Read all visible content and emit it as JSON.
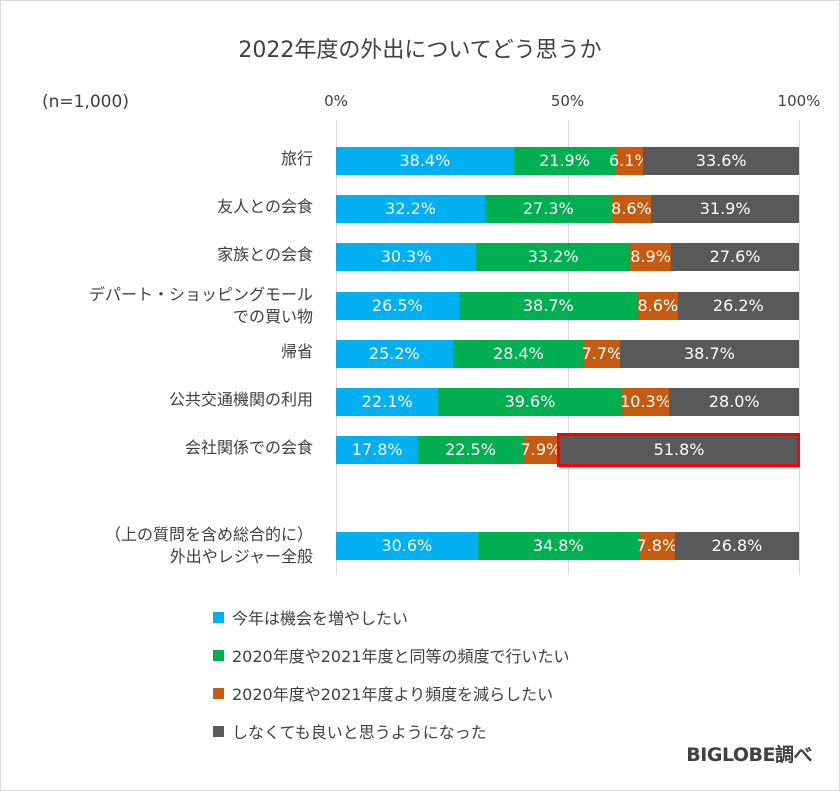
{
  "chart_data": {
    "type": "bar",
    "orientation": "horizontal",
    "stacked": "percent",
    "title": "2022年度の外出についてどう思うか",
    "sample_note": "(n=1,000)",
    "xlim": [
      0,
      100
    ],
    "x_ticks": [
      "0%",
      "50%",
      "100%"
    ],
    "grid": true,
    "legend_position": "bottom",
    "categories": [
      [
        "旅行"
      ],
      [
        "友人との会食"
      ],
      [
        "家族との会食"
      ],
      [
        "デパート・ショッピングモール",
        "での買い物"
      ],
      [
        "帰省"
      ],
      [
        "公共交通機関の利用"
      ],
      [
        "会社関係での会食"
      ],
      [
        "（上の質問を含め総合的に）",
        "外出やレジャー全般"
      ]
    ],
    "series": [
      {
        "name": "今年は機会を増やしたい",
        "color": "#00b0f0",
        "values": [
          38.4,
          32.2,
          30.3,
          26.5,
          25.2,
          22.1,
          17.8,
          30.6
        ],
        "labels": [
          "38.4%",
          "32.2%",
          "30.3%",
          "26.5%",
          "25.2%",
          "22.1%",
          "17.8%",
          "30.6%"
        ]
      },
      {
        "name": "2020年度や2021年度と同等の頻度で行いたい",
        "color": "#00b050",
        "values": [
          21.9,
          27.3,
          33.2,
          38.7,
          28.4,
          39.6,
          22.5,
          34.8
        ],
        "labels": [
          "21.9%",
          "27.3%",
          "33.2%",
          "38.7%",
          "28.4%",
          "39.6%",
          "22.5%",
          "34.8%"
        ]
      },
      {
        "name": "2020年度や2021年度より頻度を減らしたい",
        "color": "#c55a11",
        "values": [
          6.1,
          8.6,
          8.9,
          8.6,
          7.7,
          10.3,
          7.9,
          7.8
        ],
        "labels": [
          "6.1%",
          "8.6%",
          "8.9%",
          "8.6%",
          "7.7%",
          "10.3%",
          "7.9%",
          "7.8%"
        ]
      },
      {
        "name": "しなくても良いと思うようになった",
        "color": "#595959",
        "values": [
          33.6,
          31.9,
          27.6,
          26.2,
          38.7,
          28.0,
          51.8,
          26.8
        ],
        "labels": [
          "33.6%",
          "31.9%",
          "27.6%",
          "26.2%",
          "38.7%",
          "28.0%",
          "51.8%",
          "26.8%"
        ]
      }
    ],
    "highlight": {
      "category_index": 6,
      "series_index": 3,
      "color": "#ff0000"
    },
    "source_note": "BIGLOBE調べ"
  }
}
